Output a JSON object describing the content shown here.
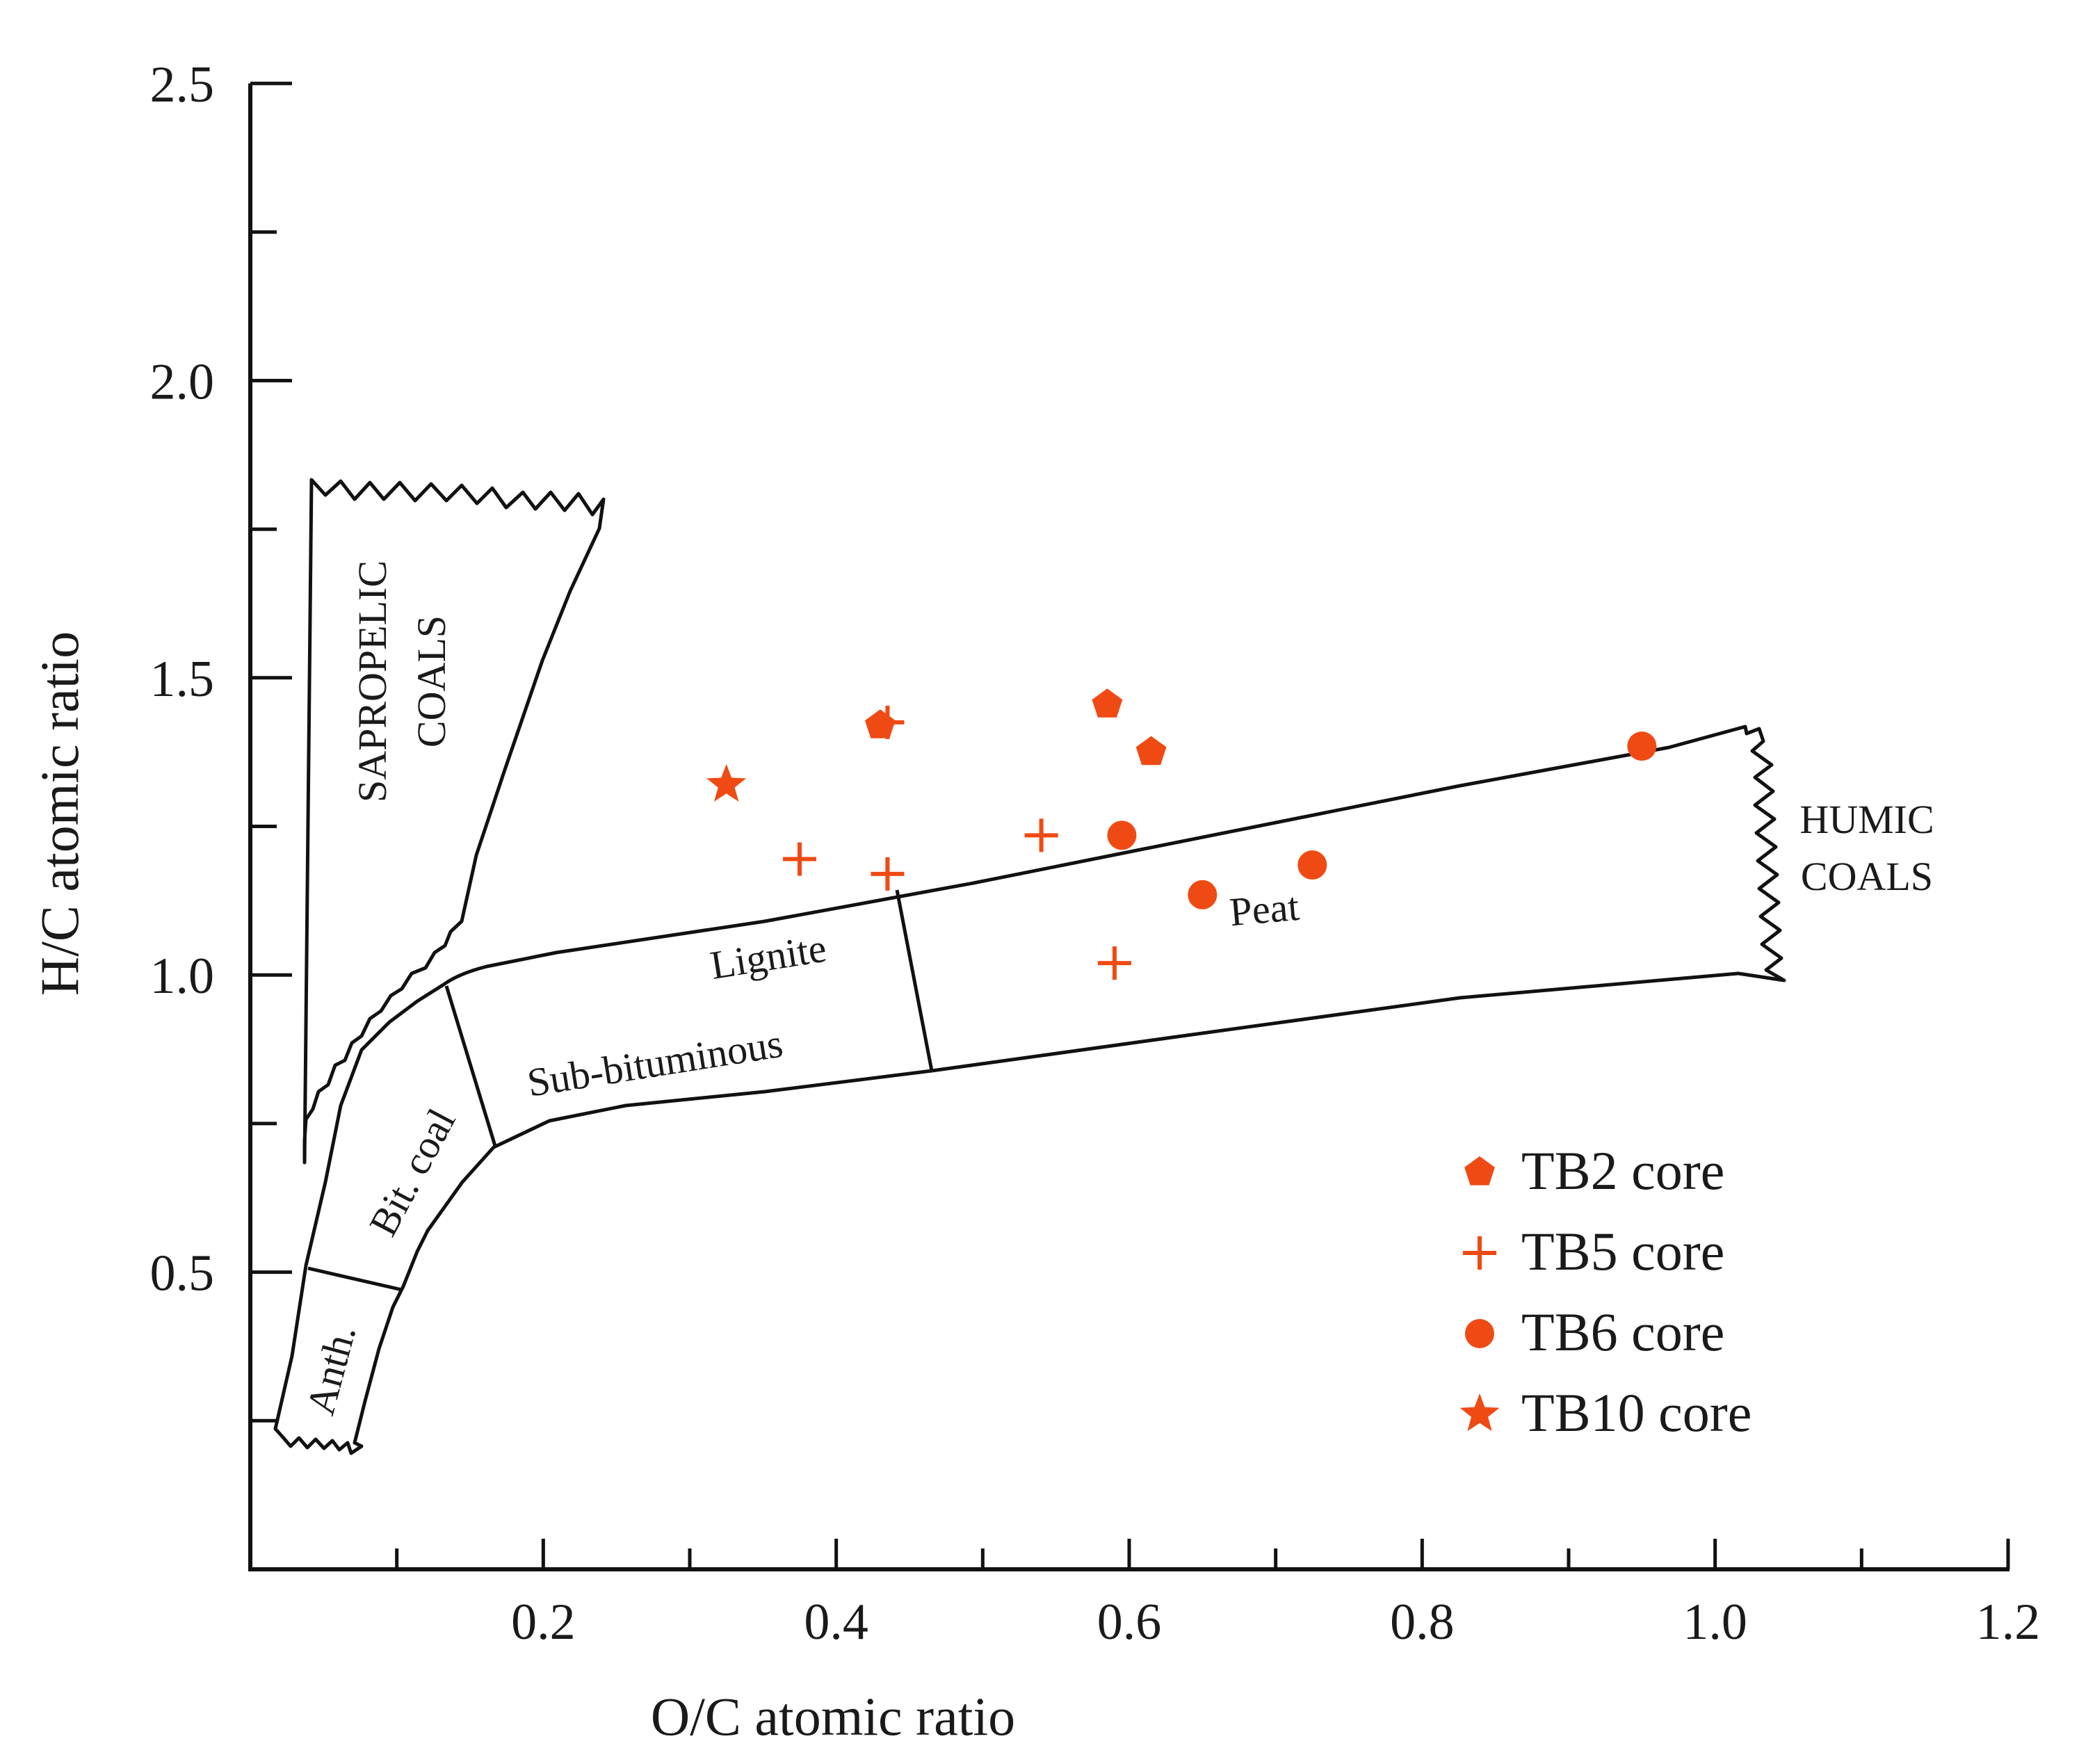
{
  "chart_data": {
    "type": "scatter",
    "xlabel": "O/C atomic ratio",
    "ylabel": "H/C atomic ratio",
    "xlim": [
      0,
      1.2
    ],
    "ylim": [
      0,
      2.5
    ],
    "x_tick_labels": [
      {
        "value": 0.2,
        "label": "0.2"
      },
      {
        "value": 0.4,
        "label": "0.4"
      },
      {
        "value": 0.6,
        "label": "0.6"
      },
      {
        "value": 0.8,
        "label": "0.8"
      },
      {
        "value": 1.0,
        "label": "1.0"
      },
      {
        "value": 1.2,
        "label": "1.2"
      }
    ],
    "x_minor_ticks": [
      0.1,
      0.3,
      0.5,
      0.7,
      0.9,
      1.1
    ],
    "y_tick_labels": [
      {
        "value": 0.5,
        "label": "0.5"
      },
      {
        "value": 1.0,
        "label": "1.0"
      },
      {
        "value": 1.5,
        "label": "1.5"
      },
      {
        "value": 2.0,
        "label": "2.0"
      },
      {
        "value": 2.5,
        "label": "2.5"
      }
    ],
    "y_minor_ticks": [
      0.25,
      0.75,
      1.25,
      1.75,
      2.25
    ],
    "color": "#f04a14",
    "series": [
      {
        "name": "TB2 core",
        "marker": "pentagon",
        "points": [
          {
            "x": 0.43,
            "y": 1.42
          },
          {
            "x": 0.585,
            "y": 1.455
          },
          {
            "x": 0.615,
            "y": 1.375
          }
        ]
      },
      {
        "name": "TB5 core",
        "marker": "plus",
        "points": [
          {
            "x": 0.435,
            "y": 1.425
          },
          {
            "x": 0.375,
            "y": 1.195
          },
          {
            "x": 0.435,
            "y": 1.17
          },
          {
            "x": 0.54,
            "y": 1.235
          },
          {
            "x": 0.59,
            "y": 1.02
          }
        ]
      },
      {
        "name": "TB6 core",
        "marker": "circle",
        "points": [
          {
            "x": 0.595,
            "y": 1.235
          },
          {
            "x": 0.65,
            "y": 1.135
          },
          {
            "x": 0.725,
            "y": 1.185
          },
          {
            "x": 0.95,
            "y": 1.385
          }
        ]
      },
      {
        "name": "TB10 core",
        "marker": "star",
        "points": [
          {
            "x": 0.325,
            "y": 1.32
          }
        ]
      }
    ],
    "regions": [
      {
        "name": "sapropelic",
        "label_lines": [
          "SAPROPELIC",
          "COALS"
        ]
      },
      {
        "name": "humic",
        "label_lines": [
          "HUMIC",
          "COALS"
        ]
      },
      {
        "name": "lignite",
        "label": "Lignite"
      },
      {
        "name": "sub-bituminous",
        "label": "Sub-bituminous"
      },
      {
        "name": "peat",
        "label": "Peat"
      },
      {
        "name": "bituminous",
        "label": "Bit. coal"
      },
      {
        "name": "anthracite",
        "label": "Anth."
      }
    ],
    "legend_position": "bottom-right"
  }
}
